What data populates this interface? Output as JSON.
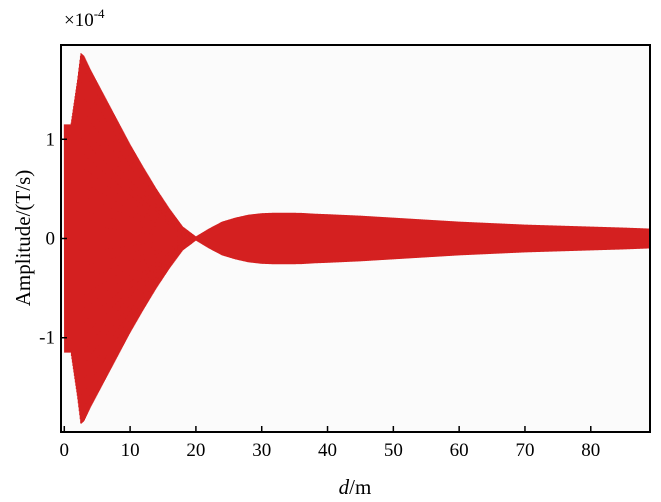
{
  "chart_data": {
    "type": "line",
    "xlabel_italic": "d",
    "xlabel_rest": "/m",
    "ylabel": "Amplitude/(T/s)",
    "y_scale_base": "×10",
    "y_scale_exp": "-4",
    "xlim": [
      -0.5,
      89
    ],
    "ylim": [
      -1.95,
      1.95
    ],
    "x_ticks": [
      0,
      10,
      20,
      30,
      40,
      50,
      60,
      70,
      80
    ],
    "x_tick_labels": [
      "0",
      "10",
      "20",
      "30",
      "40",
      "50",
      "60",
      "70",
      "80"
    ],
    "y_ticks": [
      -1,
      0,
      1
    ],
    "y_tick_labels": [
      "-1",
      "0",
      "1"
    ],
    "series": [
      {
        "color": "#d42020",
        "envelope_x": [
          0,
          0.5,
          1,
          2,
          2.5,
          3,
          4,
          6,
          8,
          10,
          12,
          14,
          16,
          18,
          20,
          22,
          24,
          26,
          28,
          30,
          32,
          34,
          36,
          38,
          40,
          45,
          50,
          55,
          60,
          65,
          70,
          75,
          80,
          85,
          89
        ],
        "envelope_y": [
          1.15,
          1.15,
          1.15,
          1.6,
          1.87,
          1.84,
          1.7,
          1.45,
          1.2,
          0.95,
          0.72,
          0.5,
          0.3,
          0.12,
          0.02,
          0.1,
          0.17,
          0.21,
          0.24,
          0.255,
          0.26,
          0.26,
          0.258,
          0.25,
          0.245,
          0.23,
          0.21,
          0.19,
          0.17,
          0.155,
          0.14,
          0.13,
          0.12,
          0.11,
          0.1
        ]
      }
    ]
  }
}
